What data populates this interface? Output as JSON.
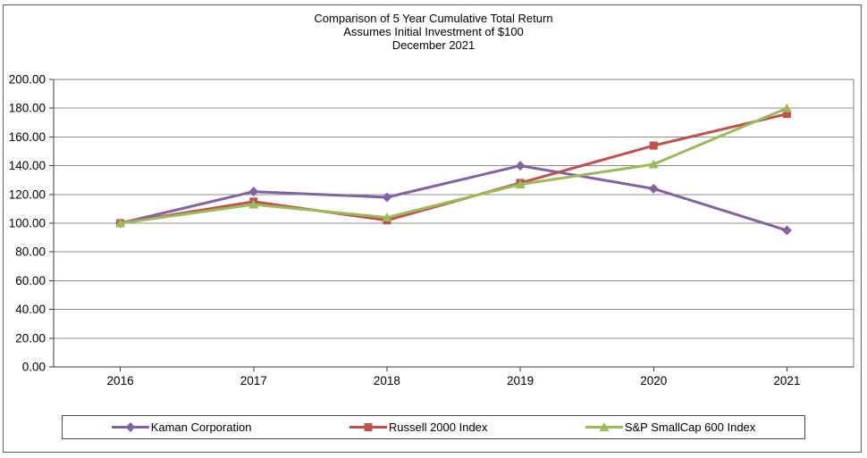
{
  "title_lines": [
    "Comparison of 5 Year Cumulative Total Return",
    "Assumes Initial Investment of $100",
    "December 2021"
  ],
  "chart_data": {
    "type": "line",
    "title": "Comparison of 5 Year Cumulative Total Return — Assumes Initial Investment of $100 — December 2021",
    "categories": [
      "2016",
      "2017",
      "2018",
      "2019",
      "2020",
      "2021"
    ],
    "series": [
      {
        "name": "Kaman Corporation",
        "color": "#8064A2",
        "marker": "diamond",
        "values": [
          100,
          122,
          118,
          140,
          124,
          95
        ]
      },
      {
        "name": "Russell 2000 Index",
        "color": "#C0504D",
        "marker": "square",
        "values": [
          100,
          115,
          102,
          128,
          154,
          176
        ]
      },
      {
        "name": "S&P SmallCap 600 Index",
        "color": "#9BBB59",
        "marker": "triangle",
        "values": [
          100,
          113,
          104,
          127,
          141,
          180
        ]
      }
    ],
    "xlabel": "",
    "ylabel": "",
    "ylim": [
      0,
      200
    ],
    "ytick_step": 20,
    "ytick_decimals": 2,
    "grid": "horizontal",
    "legend_position": "bottom",
    "grid_color": "#8e8e8e",
    "axis_color": "#3a3a3a",
    "frame_color": "#7f7f7f"
  }
}
